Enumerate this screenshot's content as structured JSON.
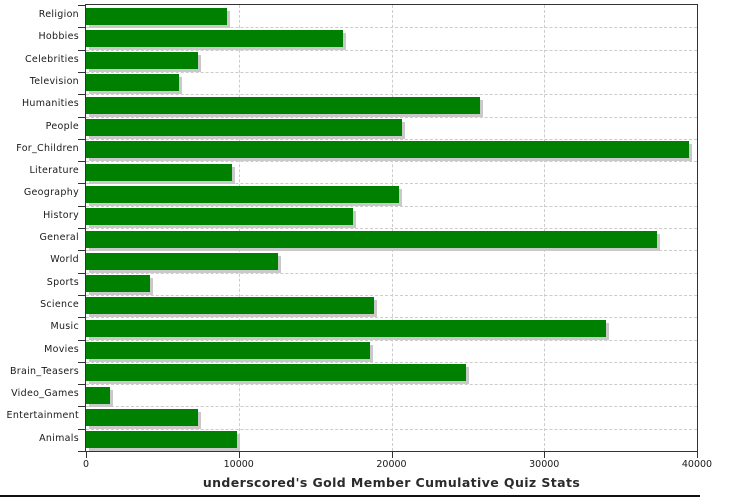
{
  "chart_data": {
    "type": "bar",
    "orientation": "horizontal",
    "title": "underscored's Gold Member Cumulative Quiz Stats",
    "categories": [
      "Religion",
      "Hobbies",
      "Celebrities",
      "Television",
      "Humanities",
      "People",
      "For_Children",
      "Literature",
      "Geography",
      "History",
      "General",
      "World",
      "Sports",
      "Science",
      "Music",
      "Movies",
      "Brain_Teasers",
      "Video_Games",
      "Entertainment",
      "Animals"
    ],
    "values": [
      9200,
      16800,
      7300,
      6100,
      25800,
      20700,
      39500,
      9550,
      20500,
      17450,
      37350,
      12550,
      4200,
      18850,
      34050,
      18600,
      24850,
      1600,
      7300,
      9900
    ],
    "xlim": [
      0,
      40000
    ],
    "x_ticks": [
      0,
      10000,
      20000,
      30000,
      40000
    ],
    "x_tick_labels": [
      "0",
      "10000",
      "20000",
      "30000",
      "40000"
    ],
    "grid": true,
    "legend": "none",
    "bar_color": "#008000",
    "shadow_color": "#c9c9c9",
    "gridline_color": "#cccccc",
    "axis_color": "#333333",
    "background_color": "#ffffff"
  }
}
